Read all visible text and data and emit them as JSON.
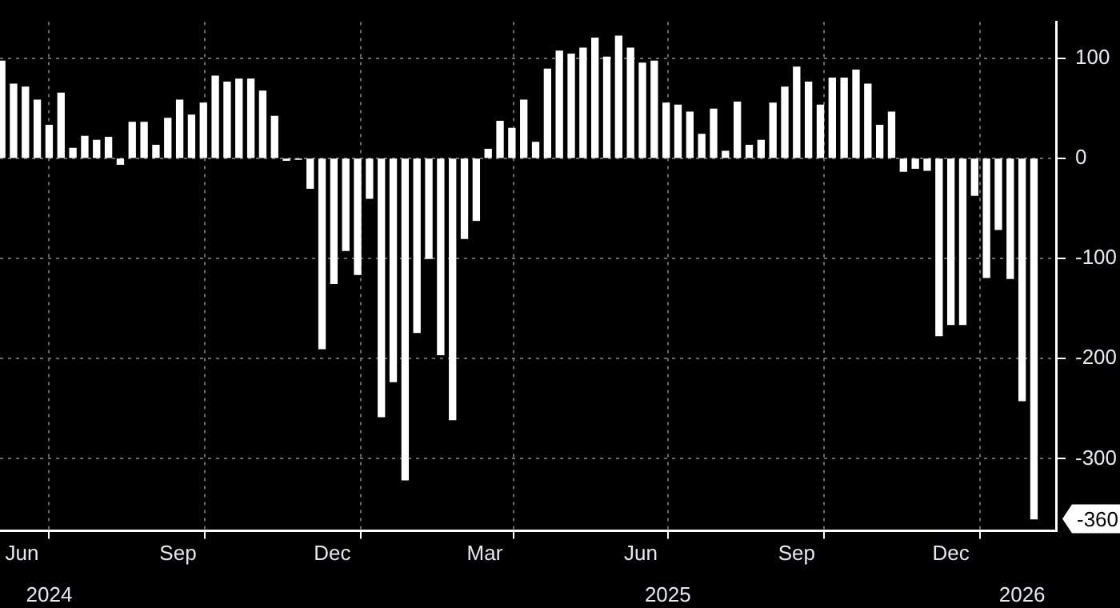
{
  "chart_data": {
    "type": "bar",
    "color": "#ffffff",
    "x": [
      "2024-06-03",
      "2024-06-10",
      "2024-06-17",
      "2024-06-24",
      "2024-07-01",
      "2024-07-08",
      "2024-07-15",
      "2024-07-22",
      "2024-07-29",
      "2024-08-05",
      "2024-08-12",
      "2024-08-19",
      "2024-08-26",
      "2024-09-02",
      "2024-09-09",
      "2024-09-16",
      "2024-09-23",
      "2024-09-30",
      "2024-10-07",
      "2024-10-14",
      "2024-10-21",
      "2024-10-28",
      "2024-11-04",
      "2024-11-11",
      "2024-11-18",
      "2024-11-25",
      "2024-12-02",
      "2024-12-09",
      "2024-12-16",
      "2024-12-23",
      "2024-12-30",
      "2025-01-06",
      "2025-01-13",
      "2025-01-20",
      "2025-01-27",
      "2025-02-03",
      "2025-02-10",
      "2025-02-17",
      "2025-02-24",
      "2025-03-03",
      "2025-03-10",
      "2025-03-17",
      "2025-03-24",
      "2025-03-31",
      "2025-04-07",
      "2025-04-14",
      "2025-04-21",
      "2025-04-28",
      "2025-05-05",
      "2025-05-12",
      "2025-05-19",
      "2025-05-26",
      "2025-06-02",
      "2025-06-09",
      "2025-06-16",
      "2025-06-23",
      "2025-06-30",
      "2025-07-07",
      "2025-07-14",
      "2025-07-21",
      "2025-07-28",
      "2025-08-04",
      "2025-08-11",
      "2025-08-18",
      "2025-08-25",
      "2025-09-01",
      "2025-09-08",
      "2025-09-15",
      "2025-09-22",
      "2025-09-29",
      "2025-10-06",
      "2025-10-13",
      "2025-10-20",
      "2025-10-27",
      "2025-11-03",
      "2025-11-10",
      "2025-11-17",
      "2025-11-24",
      "2025-12-01",
      "2025-12-08",
      "2025-12-15",
      "2025-12-22",
      "2025-12-29",
      "2026-01-05",
      "2026-01-12",
      "2026-01-19",
      "2026-01-26",
      "2026-02-02"
    ],
    "values": [
      97,
      74,
      71,
      58,
      33,
      65,
      10,
      22,
      18,
      21,
      -6,
      36,
      36,
      13,
      40,
      58,
      43,
      55,
      82,
      76,
      79,
      79,
      67,
      42,
      -2,
      -1,
      -30,
      -190,
      -125,
      -92,
      -116,
      -40,
      -258,
      -223,
      -321,
      -174,
      -100,
      -196,
      -261,
      -80,
      -62,
      9,
      37,
      30,
      58,
      16,
      89,
      107,
      104,
      110,
      120,
      101,
      122,
      110,
      95,
      97,
      55,
      53,
      46,
      24,
      49,
      7,
      56,
      13,
      18,
      55,
      71,
      91,
      76,
      53,
      80,
      80,
      88,
      74,
      33,
      46,
      -13,
      -10,
      -12,
      -177,
      -166,
      -166,
      -37,
      -119,
      -71,
      -120,
      -242,
      -360
    ],
    "xlim": [
      "2024-06-02",
      "2026-02-15"
    ],
    "xticks": [
      {
        "value": "2024-06-15",
        "label": "Jun"
      },
      {
        "value": "2024-07-01",
        "label": null
      },
      {
        "value": "2024-09-15",
        "label": "Sep"
      },
      {
        "value": "2024-10-01",
        "label": null
      },
      {
        "value": "2024-12-15",
        "label": "Dec"
      },
      {
        "value": "2025-01-01",
        "label": null
      },
      {
        "value": "2025-03-15",
        "label": "Mar"
      },
      {
        "value": "2025-04-01",
        "label": null
      },
      {
        "value": "2025-06-15",
        "label": "Jun"
      },
      {
        "value": "2025-07-01",
        "label": null
      },
      {
        "value": "2025-09-15",
        "label": "Sep"
      },
      {
        "value": "2025-10-01",
        "label": null
      },
      {
        "value": "2025-12-15",
        "label": "Dec"
      },
      {
        "value": "2026-01-01",
        "label": null
      }
    ],
    "x2lim": [
      "2024-06-02",
      "2026-02-15"
    ],
    "x2ticks": [
      {
        "value": "2024-07-01",
        "label": "2024"
      },
      {
        "value": "2025-07-01",
        "label": "2025"
      },
      {
        "value": "2026-01-26",
        "label": "2026"
      }
    ],
    "ylim": [
      -372,
      136
    ],
    "yticks": [
      -300,
      -200,
      -100,
      0,
      100
    ],
    "grid": true,
    "annotations": [
      "-360"
    ]
  }
}
